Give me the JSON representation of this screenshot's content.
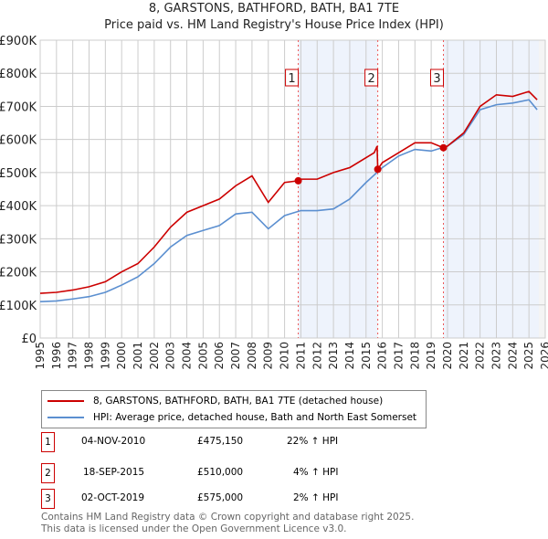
{
  "title": "8, GARSTONS, BATHFORD, BATH, BA1 7TE",
  "subtitle": "Price paid vs. HM Land Registry's House Price Index (HPI)",
  "chart_data": {
    "type": "line",
    "title": "8, GARSTONS, BATHFORD, BATH, BA1 7TE",
    "subtitle": "Price paid vs. HM Land Registry's House Price Index (HPI)",
    "xlim": [
      1995,
      2026
    ],
    "ylim": [
      0,
      900000
    ],
    "x_ticks": [
      "1995",
      "1996",
      "1997",
      "1998",
      "1999",
      "2000",
      "2001",
      "2002",
      "2003",
      "2004",
      "2005",
      "2006",
      "2007",
      "2008",
      "2009",
      "2010",
      "2011",
      "2012",
      "2013",
      "2014",
      "2015",
      "2016",
      "2017",
      "2018",
      "2019",
      "2020",
      "2021",
      "2022",
      "2023",
      "2024",
      "2025",
      "2026"
    ],
    "y_ticks": [
      {
        "v": 0,
        "label": "£0"
      },
      {
        "v": 100000,
        "label": "£100K"
      },
      {
        "v": 200000,
        "label": "£200K"
      },
      {
        "v": 300000,
        "label": "£300K"
      },
      {
        "v": 400000,
        "label": "£400K"
      },
      {
        "v": 500000,
        "label": "£500K"
      },
      {
        "v": 600000,
        "label": "£600K"
      },
      {
        "v": 700000,
        "label": "£700K"
      },
      {
        "v": 800000,
        "label": "£800K"
      },
      {
        "v": 900000,
        "label": "£900K"
      }
    ],
    "grid": true,
    "series": [
      {
        "name": "8, GARSTONS, BATHFORD, BATH, BA1 7TE (detached house)",
        "color": "#cc0000",
        "x": [
          1995,
          1996,
          1997,
          1998,
          1999,
          2000,
          2001,
          2002,
          2003,
          2004,
          2005,
          2006,
          2007,
          2008,
          2009,
          2010,
          2010.84,
          2011,
          2012,
          2013,
          2014,
          2015.5,
          2015.68,
          2015.72,
          2016,
          2017,
          2018,
          2019,
          2019.75,
          2020,
          2021,
          2022,
          2023,
          2024,
          2025,
          2025.5
        ],
        "y": [
          135000,
          138000,
          145000,
          155000,
          170000,
          200000,
          225000,
          275000,
          335000,
          380000,
          400000,
          420000,
          460000,
          490000,
          410000,
          470000,
          475150,
          480000,
          480000,
          500000,
          515000,
          560000,
          580000,
          510000,
          530000,
          560000,
          590000,
          590000,
          575000,
          580000,
          620000,
          700000,
          735000,
          730000,
          745000,
          720000
        ]
      },
      {
        "name": "HPI: Average price, detached house, Bath and North East Somerset",
        "color": "#5b8fd0",
        "x": [
          1995,
          1996,
          1997,
          1998,
          1999,
          2000,
          2001,
          2002,
          2003,
          2004,
          2005,
          2006,
          2007,
          2008,
          2009,
          2010,
          2011,
          2012,
          2013,
          2014,
          2015,
          2016,
          2017,
          2018,
          2019,
          2020,
          2021,
          2022,
          2023,
          2024,
          2025,
          2025.5
        ],
        "y": [
          110000,
          112000,
          118000,
          125000,
          138000,
          160000,
          185000,
          225000,
          275000,
          310000,
          325000,
          340000,
          375000,
          380000,
          330000,
          370000,
          385000,
          385000,
          390000,
          420000,
          470000,
          515000,
          550000,
          570000,
          565000,
          580000,
          615000,
          690000,
          705000,
          710000,
          720000,
          690000
        ]
      }
    ],
    "sales": [
      {
        "label": "1",
        "x": 2010.84,
        "y": 475150
      },
      {
        "label": "2",
        "x": 2015.72,
        "y": 510000
      },
      {
        "label": "3",
        "x": 2019.75,
        "y": 575000
      }
    ],
    "legend_placement": "below"
  },
  "table": [
    {
      "num": "1",
      "date": "04-NOV-2010",
      "price": "£475,150",
      "hpi": "22% ↑ HPI"
    },
    {
      "num": "2",
      "date": "18-SEP-2015",
      "price": "£510,000",
      "hpi": "4% ↑ HPI"
    },
    {
      "num": "3",
      "date": "02-OCT-2019",
      "price": "£575,000",
      "hpi": "2% ↑ HPI"
    }
  ],
  "footer": {
    "line1": "Contains HM Land Registry data © Crown copyright and database right 2025.",
    "line2": "This data is licensed under the Open Government Licence v3.0."
  }
}
